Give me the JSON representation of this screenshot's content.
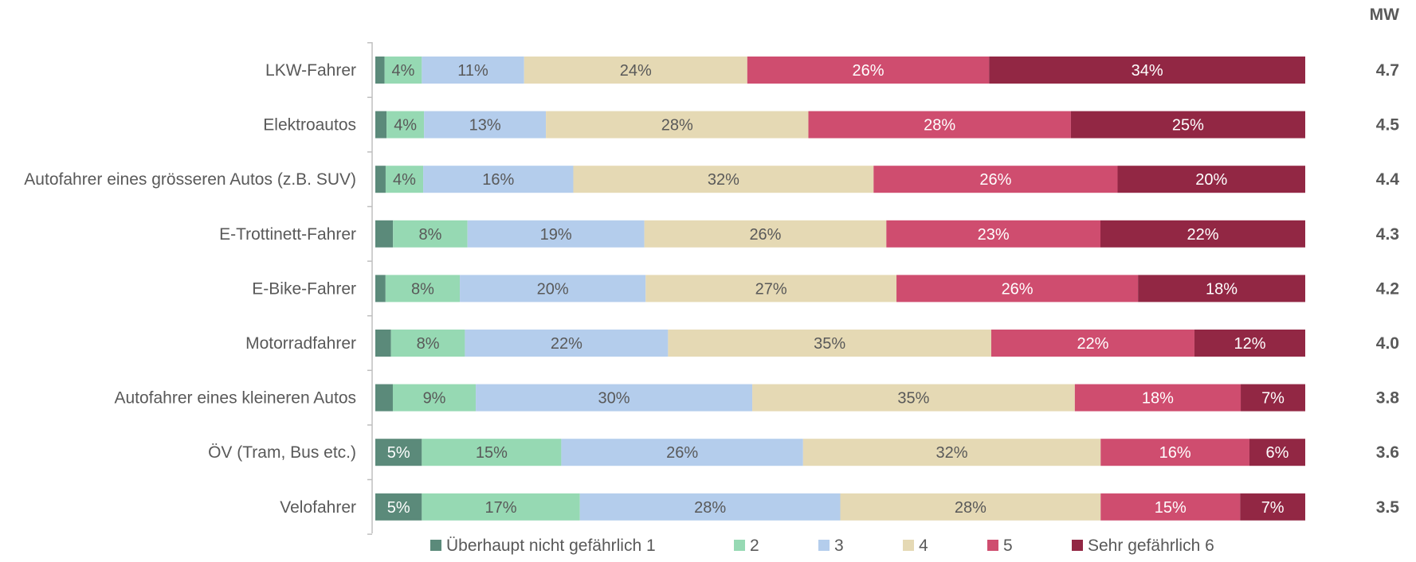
{
  "chart_data": {
    "type": "bar",
    "orientation": "horizontal",
    "stacked": true,
    "normalized_percent": true,
    "mean_column_header": "MW",
    "categories": [
      "LKW-Fahrer",
      "Elektroautos",
      "Autofahrer eines grösseren Autos (z.B. SUV)",
      "E-Trottinett-Fahrer",
      "E-Bike-Fahrer",
      "Motorradfahrer",
      "Autofahrer eines kleineren Autos",
      "ÖV (Tram, Bus etc.)",
      "Velofahrer"
    ],
    "series": [
      {
        "name": "Überhaupt nicht gefährlich 1",
        "color": "#5b8a7a",
        "text_color": "#ffffff",
        "values": [
          1,
          1.2,
          1.1,
          1.9,
          1.1,
          1.7,
          1.9,
          5,
          5
        ]
      },
      {
        "name": "2",
        "color": "#96d9b3",
        "text_color": "#595959",
        "values": [
          4,
          4,
          4,
          8,
          8,
          8,
          9,
          15,
          17
        ]
      },
      {
        "name": "3",
        "color": "#b4cdec",
        "text_color": "#595959",
        "values": [
          11,
          13,
          16,
          19,
          20,
          22,
          30,
          26,
          28
        ]
      },
      {
        "name": "4",
        "color": "#e5d9b4",
        "text_color": "#595959",
        "values": [
          24,
          28,
          32,
          26,
          27,
          35,
          35,
          32,
          28
        ]
      },
      {
        "name": "5",
        "color": "#cf4d6f",
        "text_color": "#ffffff",
        "values": [
          26,
          28,
          26,
          23,
          26,
          22,
          18,
          16,
          15
        ]
      },
      {
        "name": "Sehr gefährlich 6",
        "color": "#922744",
        "text_color": "#ffffff",
        "values": [
          34,
          25,
          20,
          22,
          18,
          12,
          7,
          6,
          7
        ]
      }
    ],
    "data_labels": [
      [
        "",
        "4%",
        "11%",
        "24%",
        "26%",
        "34%"
      ],
      [
        "",
        "4%",
        "13%",
        "28%",
        "28%",
        "25%"
      ],
      [
        "",
        "4%",
        "16%",
        "32%",
        "26%",
        "20%"
      ],
      [
        "",
        "8%",
        "19%",
        "26%",
        "23%",
        "22%"
      ],
      [
        "",
        "8%",
        "20%",
        "27%",
        "26%",
        "18%"
      ],
      [
        "",
        "8%",
        "22%",
        "35%",
        "22%",
        "12%"
      ],
      [
        "",
        "9%",
        "30%",
        "35%",
        "18%",
        "7%"
      ],
      [
        "5%",
        "15%",
        "26%",
        "32%",
        "16%",
        "6%"
      ],
      [
        "5%",
        "17%",
        "28%",
        "28%",
        "15%",
        "7%"
      ]
    ],
    "mean_values": [
      "4.7",
      "4.5",
      "4.4",
      "4.3",
      "4.2",
      "4.0",
      "3.8",
      "3.6",
      "3.5"
    ],
    "legend_position": "bottom",
    "grid": false
  }
}
